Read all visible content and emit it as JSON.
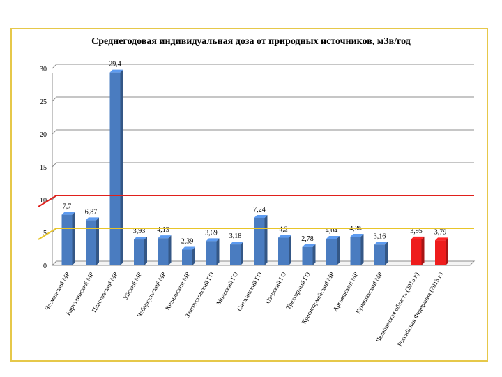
{
  "chart_data": {
    "type": "bar",
    "title": "Среднегодовая  индивидуальная доза от  природных  источников, мЗв/год",
    "categories": [
      "Чесменский  МР",
      "Карталинский МР",
      "Пластовский МР",
      "Уйский МР",
      "Чебаркульский  МР",
      "Кизильский  МР",
      "Златоустовский  ГО",
      "Миасский ГО",
      "Снежинский ГО",
      "Озерский ГО",
      "Трехгорный ГО",
      "Красноармейский МР",
      "Аргаяшский МР",
      "Кунашакский МР",
      "Челябинская область (2013 г.)",
      "Российская Федерация (2013 г.)"
    ],
    "values": [
      7.7,
      6.87,
      29.4,
      3.93,
      4.13,
      2.39,
      3.69,
      3.18,
      7.24,
      4.2,
      2.78,
      4.04,
      4.36,
      3.16,
      3.95,
      3.79
    ],
    "value_labels": [
      "7,7",
      "6,87",
      "29,4",
      "3,93",
      "4,13",
      "2,39",
      "3,69",
      "3,18",
      "7,24",
      "4,2",
      "2,78",
      "4,04",
      "4,36",
      "3,16",
      "3,95",
      "3,79"
    ],
    "highlighted": [
      false,
      false,
      false,
      false,
      false,
      false,
      false,
      false,
      false,
      false,
      false,
      false,
      false,
      false,
      true,
      true
    ],
    "ylim": [
      0,
      30
    ],
    "yticks": [
      "0",
      "5",
      "10",
      "15",
      "20",
      "25",
      "30"
    ],
    "grid": true,
    "reference_lines": [
      {
        "value": 10,
        "color": "#e0201c"
      },
      {
        "value": 5,
        "color": "#e8c52a"
      }
    ],
    "colors": {
      "bar": "#4a7cc0",
      "bar_highlight": "#ee1c1c",
      "frame": "#e6c84a"
    }
  }
}
